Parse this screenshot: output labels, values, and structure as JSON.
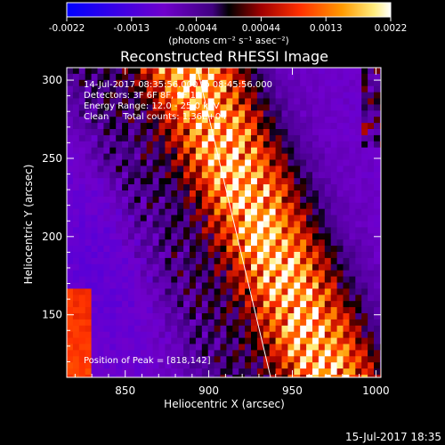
{
  "colorbar": {
    "ticks": [
      "-0.0022",
      "-0.0013",
      "-0.00044",
      "0.00044",
      "0.0013",
      "0.0022"
    ],
    "unit_label": "(photons cm⁻² s⁻¹ asec⁻²)",
    "range": [
      -0.0022,
      0.0022
    ]
  },
  "chart_data": {
    "type": "heatmap",
    "title": "Reconstructed RHESSI Image",
    "xlabel": "Heliocentric X (arcsec)",
    "ylabel": "Heliocentric Y (arcsec)",
    "xlim": [
      815,
      1003
    ],
    "ylim": [
      110,
      308
    ],
    "xticks": [
      "850",
      "900",
      "950",
      "1000"
    ],
    "yticks": [
      "150",
      "200",
      "250",
      "300"
    ],
    "xtick_values": [
      850,
      900,
      950,
      1000
    ],
    "ytick_values": [
      150,
      200,
      250,
      300
    ],
    "annotations": [
      "14-Jul-2017 08:35:56.000 to 08:45:56.000",
      "Detectors: 3F 6F 8F, 9F 10",
      "Energy Range: 12.0 - 25.0 keV",
      "Clean     Total counts: 1.36E+04"
    ],
    "peak_label": "Position of Peak = [818,142]",
    "peak_position": [
      818,
      142
    ],
    "limb_line": [
      [
        893,
        308
      ],
      [
        937,
        110
      ]
    ]
  },
  "footer": {
    "timestamp": "15-Jul-2017 18:35"
  }
}
